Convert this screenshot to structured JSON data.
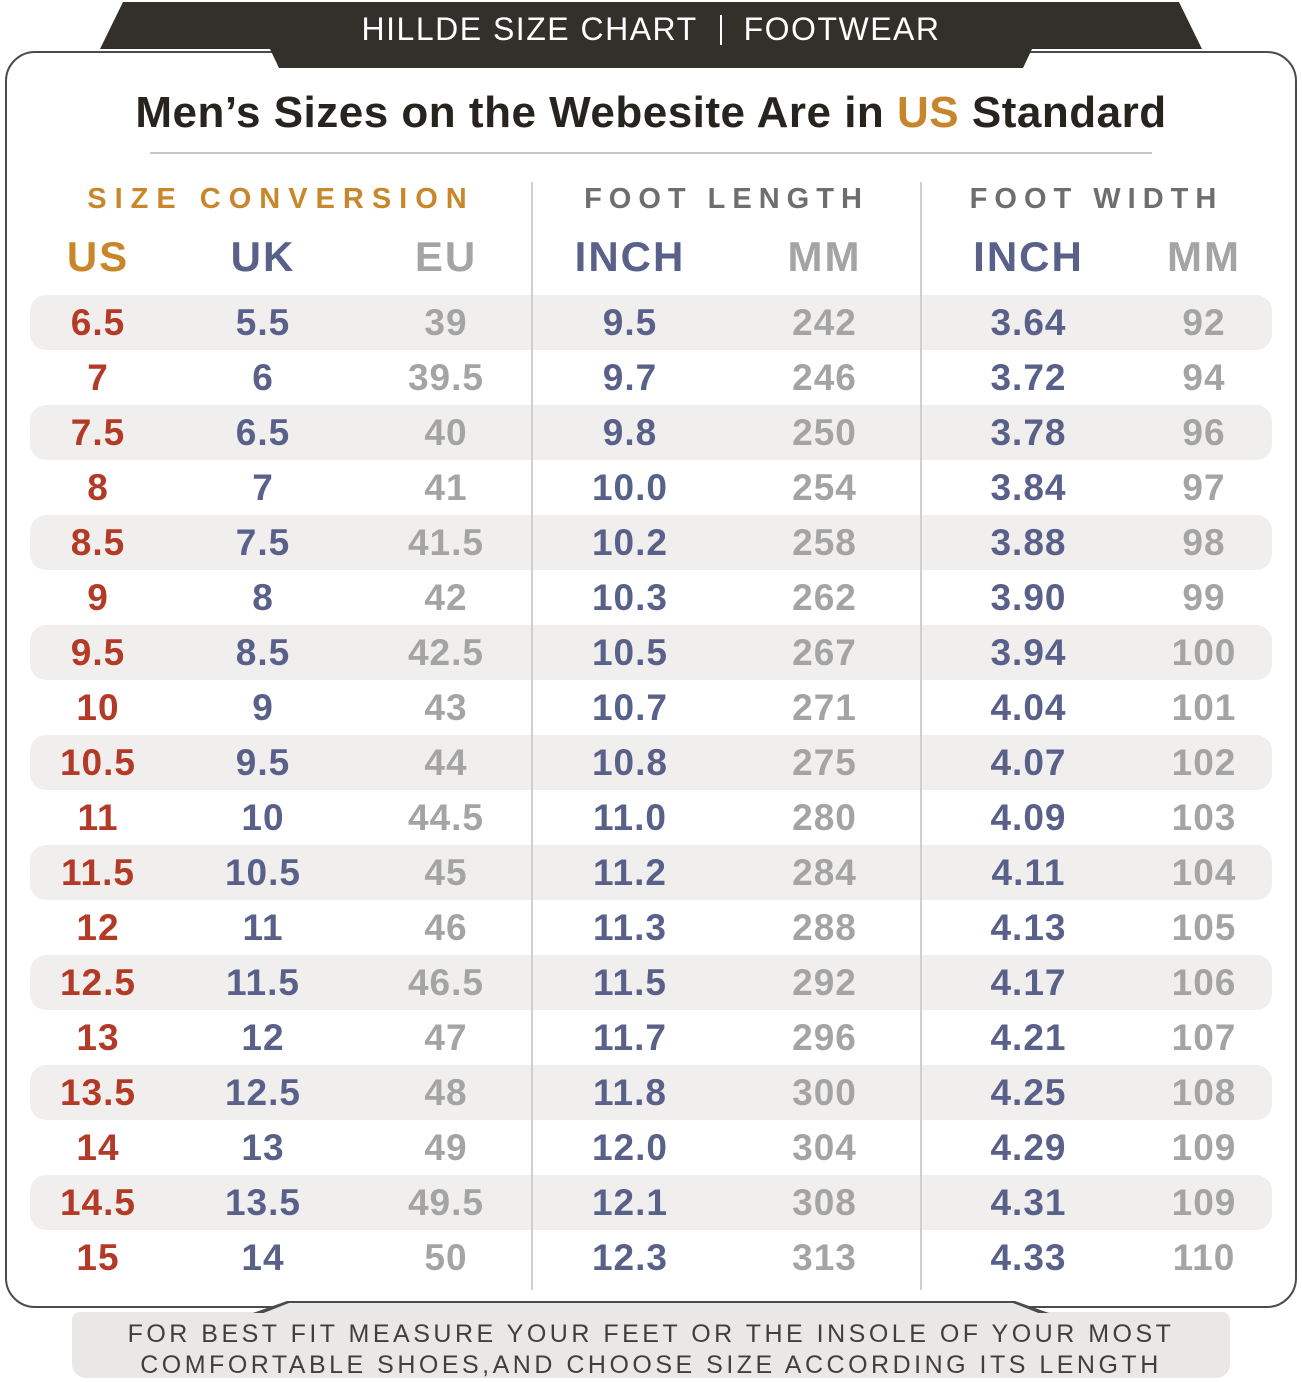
{
  "banner": {
    "brand": "HILLDE SIZE CHART",
    "category": "FOOTWEAR"
  },
  "title": {
    "prefix": "Men’s Sizes on the Webesite Are in ",
    "highlight": "US",
    "suffix": " Standard"
  },
  "chart_data": {
    "type": "table",
    "title": "Men’s Sizes on the Webesite Are in US Standard",
    "column_groups": [
      "SIZE CONVERSION",
      "FOOT LENGTH",
      "FOOT WIDTH"
    ],
    "columns": [
      "US",
      "UK",
      "EU",
      "INCH",
      "MM",
      "INCH",
      "MM"
    ],
    "rows": [
      [
        "6.5",
        "5.5",
        "39",
        "9.5",
        "242",
        "3.64",
        "92"
      ],
      [
        "7",
        "6",
        "39.5",
        "9.7",
        "246",
        "3.72",
        "94"
      ],
      [
        "7.5",
        "6.5",
        "40",
        "9.8",
        "250",
        "3.78",
        "96"
      ],
      [
        "8",
        "7",
        "41",
        "10.0",
        "254",
        "3.84",
        "97"
      ],
      [
        "8.5",
        "7.5",
        "41.5",
        "10.2",
        "258",
        "3.88",
        "98"
      ],
      [
        "9",
        "8",
        "42",
        "10.3",
        "262",
        "3.90",
        "99"
      ],
      [
        "9.5",
        "8.5",
        "42.5",
        "10.5",
        "267",
        "3.94",
        "100"
      ],
      [
        "10",
        "9",
        "43",
        "10.7",
        "271",
        "4.04",
        "101"
      ],
      [
        "10.5",
        "9.5",
        "44",
        "10.8",
        "275",
        "4.07",
        "102"
      ],
      [
        "11",
        "10",
        "44.5",
        "11.0",
        "280",
        "4.09",
        "103"
      ],
      [
        "11.5",
        "10.5",
        "45",
        "11.2",
        "284",
        "4.11",
        "104"
      ],
      [
        "12",
        "11",
        "46",
        "11.3",
        "288",
        "4.13",
        "105"
      ],
      [
        "12.5",
        "11.5",
        "46.5",
        "11.5",
        "292",
        "4.17",
        "106"
      ],
      [
        "13",
        "12",
        "47",
        "11.7",
        "296",
        "4.21",
        "107"
      ],
      [
        "13.5",
        "12.5",
        "48",
        "11.8",
        "300",
        "4.25",
        "108"
      ],
      [
        "14",
        "13",
        "49",
        "12.0",
        "304",
        "4.29",
        "109"
      ],
      [
        "14.5",
        "13.5",
        "49.5",
        "12.1",
        "308",
        "4.31",
        "109"
      ],
      [
        "15",
        "14",
        "50",
        "12.3",
        "313",
        "4.33",
        "110"
      ]
    ]
  },
  "footer": {
    "line1": "FOR BEST FIT MEASURE YOUR FEET OR THE INSOLE OF YOUR MOST",
    "line2": "COMFORTABLE SHOES,AND CHOOSE SIZE ACCORDING ITS LENGTH"
  },
  "colors": {
    "banner_bg": "#33302b",
    "accent_gold": "#c8872b",
    "us_red": "#b23a26",
    "navy": "#59608a",
    "value_gray": "#a4a4a4",
    "group_gray": "#6e6e6e",
    "stripe": "#f0efed",
    "card_border": "#4b4b49",
    "band_bg": "#e9e8e6",
    "footer_text": "#3f3f3f"
  }
}
